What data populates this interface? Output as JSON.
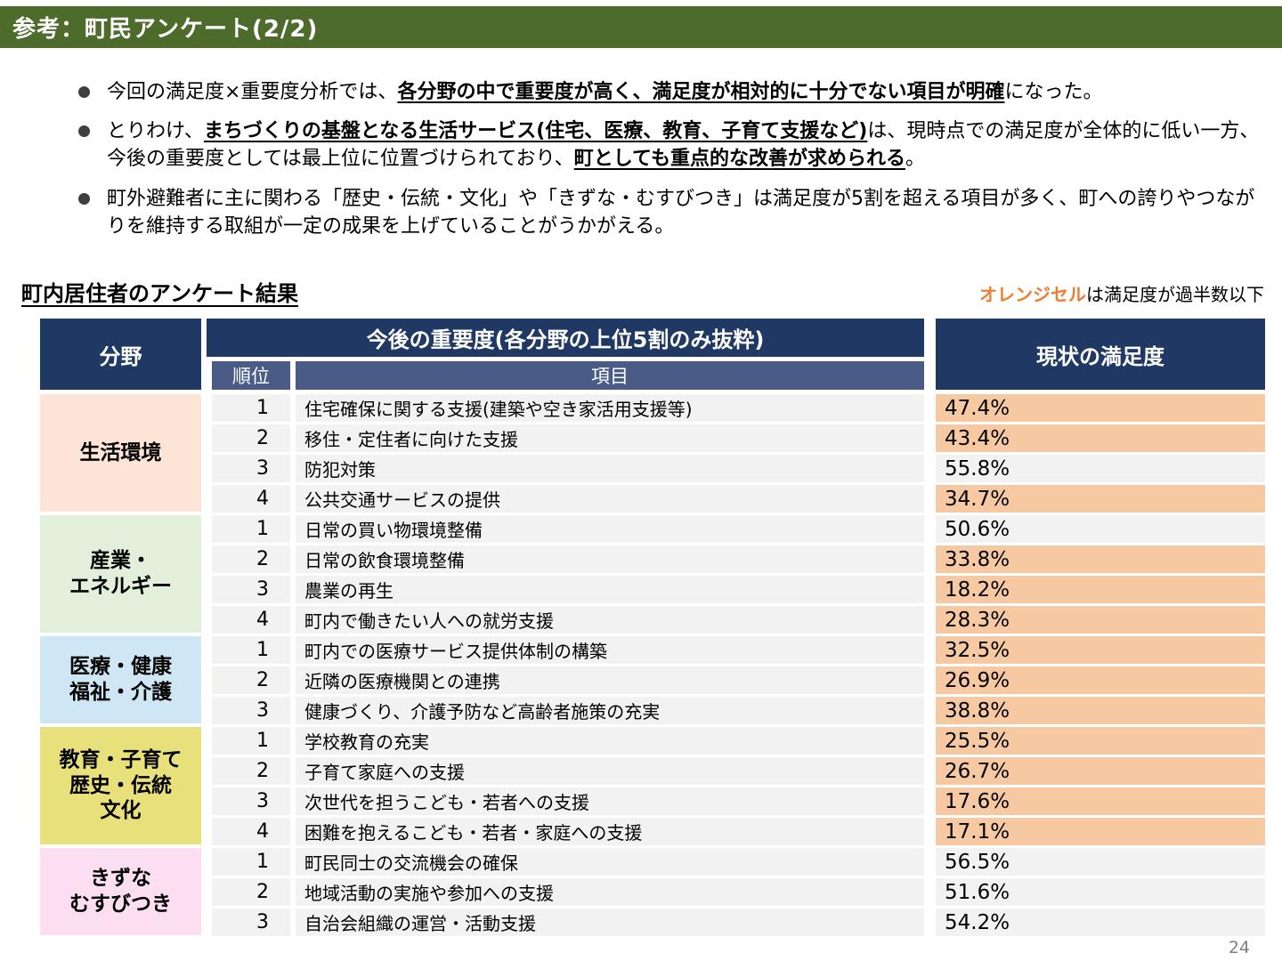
{
  "header": {
    "title": "参考：町民アンケート(2/2)"
  },
  "colors": {
    "title_bar_green": "#4d6b2b",
    "header_navy": "#1f3864",
    "subheader_blue": "#4a5c85",
    "orange_cell": "#f7c9a3",
    "plain_cell": "#f2f2f2",
    "legend_orange": "#ed7d31"
  },
  "bullets": [
    {
      "segments": [
        {
          "t": "今回の満足度×重要度分析では、",
          "em": false
        },
        {
          "t": "各分野の中で重要度が高く、満足度が相対的に十分でない項目が明確",
          "em": true
        },
        {
          "t": "になった。",
          "em": false
        }
      ]
    },
    {
      "segments": [
        {
          "t": "とりわけ、",
          "em": false
        },
        {
          "t": "まちづくりの基盤となる生活サービス(住宅、医療、教育、子育て支援など)",
          "em": true
        },
        {
          "t": "は、現時点での満足度が全体的に低い一方、今後の重要度としては最上位に位置づけられており、",
          "em": false
        },
        {
          "t": "町としても重点的な改善が求められる",
          "em": true
        },
        {
          "t": "。",
          "em": false
        }
      ]
    },
    {
      "segments": [
        {
          "t": "町外避難者に主に関わる「歴史・伝統・文化」や「きずな・むすびつき」は満足度が5割を超える項目が多く、町への誇りやつながりを維持する取組が一定の成果を上げていることがうかがえる。",
          "em": false
        }
      ]
    }
  ],
  "section": {
    "heading": "町内居住者のアンケート結果",
    "note_highlight": "オレンジセル",
    "note_rest": "は満足度が過半数以下"
  },
  "table": {
    "headers": {
      "category": "分野",
      "importance": "今後の重要度(各分野の上位5割のみ抜粋)",
      "rank": "順位",
      "item": "項目",
      "satisfaction": "現状の満足度"
    },
    "groups": [
      {
        "name": "生活環境",
        "color": "#fce4d6",
        "rows": [
          {
            "rank": "1",
            "item": "住宅確保に関する支援(建築や空き家活用支援等)",
            "value": "47.4%",
            "orange": true
          },
          {
            "rank": "2",
            "item": "移住・定住者に向けた支援",
            "value": "43.4%",
            "orange": true
          },
          {
            "rank": "3",
            "item": "防犯対策",
            "value": "55.8%",
            "orange": false
          },
          {
            "rank": "4",
            "item": "公共交通サービスの提供",
            "value": "34.7%",
            "orange": true
          }
        ]
      },
      {
        "name": "産業・\nエネルギー",
        "color": "#e2efda",
        "rows": [
          {
            "rank": "1",
            "item": "日常の買い物環境整備",
            "value": "50.6%",
            "orange": false
          },
          {
            "rank": "2",
            "item": "日常の飲食環境整備",
            "value": "33.8%",
            "orange": true
          },
          {
            "rank": "3",
            "item": "農業の再生",
            "value": "18.2%",
            "orange": true
          },
          {
            "rank": "4",
            "item": "町内で働きたい人への就労支援",
            "value": "28.3%",
            "orange": true
          }
        ]
      },
      {
        "name": "医療・健康\n福祉・介護",
        "color": "#cfe6f4",
        "rows": [
          {
            "rank": "1",
            "item": "町内での医療サービス提供体制の構築",
            "value": "32.5%",
            "orange": true
          },
          {
            "rank": "2",
            "item": "近隣の医療機関との連携",
            "value": "26.9%",
            "orange": true
          },
          {
            "rank": "3",
            "item": "健康づくり、介護予防など高齢者施策の充実",
            "value": "38.8%",
            "orange": true
          }
        ]
      },
      {
        "name": "教育・子育て\n歴史・伝統\n文化",
        "color": "#e8e17b",
        "rows": [
          {
            "rank": "1",
            "item": "学校教育の充実",
            "value": "25.5%",
            "orange": true
          },
          {
            "rank": "2",
            "item": "子育て家庭への支援",
            "value": "26.7%",
            "orange": true
          },
          {
            "rank": "3",
            "item": "次世代を担うこども・若者への支援",
            "value": "17.6%",
            "orange": true
          },
          {
            "rank": "4",
            "item": "困難を抱えるこども・若者・家庭への支援",
            "value": "17.1%",
            "orange": true
          }
        ]
      },
      {
        "name": "きずな\nむすびつき",
        "color": "#fbdff0",
        "rows": [
          {
            "rank": "1",
            "item": "町民同士の交流機会の確保",
            "value": "56.5%",
            "orange": false
          },
          {
            "rank": "2",
            "item": "地域活動の実施や参加への支援",
            "value": "51.6%",
            "orange": false
          },
          {
            "rank": "3",
            "item": "自治会組織の運営・活動支援",
            "value": "54.2%",
            "orange": false
          }
        ]
      }
    ]
  },
  "footer": {
    "page_number": "24"
  }
}
